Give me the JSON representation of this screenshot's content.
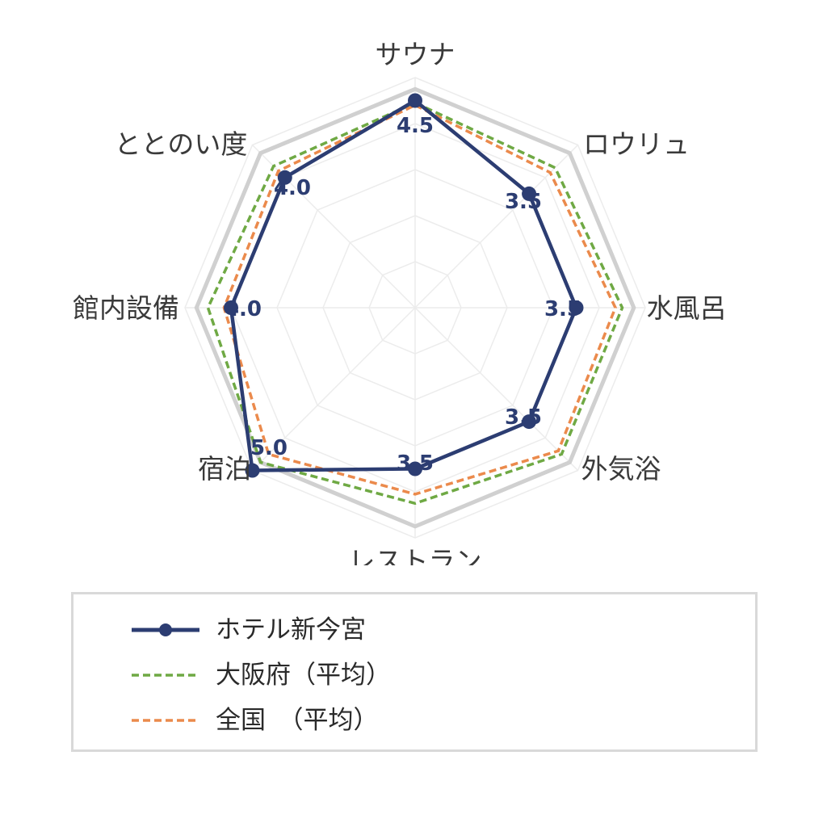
{
  "chart_data": {
    "type": "radar",
    "axes": [
      "サウナ",
      "ロウリュ",
      "水風呂",
      "外気浴",
      "レストラン",
      "宿泊",
      "館内設備",
      "ととのい度"
    ],
    "range": [
      0,
      5
    ],
    "grid": true,
    "legend_position": "bottom",
    "value_labels": [
      "4.5",
      "3.5",
      "3.5",
      "3.5",
      "3.5",
      "5.0",
      "4.0",
      "4.0"
    ],
    "series": [
      {
        "name": "ホテル新今宮",
        "values": [
          4.5,
          3.5,
          3.5,
          3.5,
          3.5,
          5.0,
          4.0,
          4.0
        ],
        "color": "#2c3d72",
        "style": "solid-marker"
      },
      {
        "name": "大阪府（平均）",
        "values": [
          4.45,
          4.3,
          4.5,
          4.5,
          4.25,
          4.75,
          4.5,
          4.35
        ],
        "color": "#6fa944",
        "style": "dashed"
      },
      {
        "name": "全国　（平均）",
        "values": [
          4.4,
          4.15,
          4.35,
          4.4,
          4.05,
          4.5,
          4.15,
          4.2
        ],
        "color": "#eb8a4c",
        "style": "dashed"
      }
    ],
    "benchmark_ring": {
      "value": 4.75,
      "color": "#d0d0d0"
    }
  }
}
